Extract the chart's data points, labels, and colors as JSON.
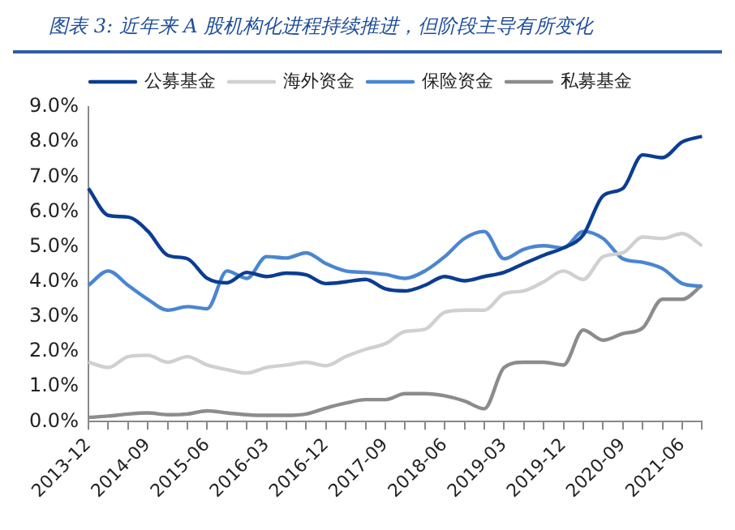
{
  "chart_data": {
    "type": "line",
    "title": "图表 3: 近年来 A 股机构化进程持续推进，但阶段主导有所变化",
    "categories": [
      "2013-12",
      null,
      null,
      "2014-09",
      null,
      null,
      "2015-06",
      null,
      null,
      "2016-03",
      null,
      null,
      "2016-12",
      null,
      null,
      "2017-09",
      null,
      null,
      "2018-06",
      null,
      null,
      "2019-03",
      null,
      null,
      "2019-12",
      null,
      null,
      "2020-09",
      null,
      null,
      "2021-06",
      null
    ],
    "series": [
      {
        "name": "公募基金",
        "color": "#0b3d91",
        "values": [
          6.67,
          5.9,
          5.85,
          5.45,
          4.76,
          4.66,
          4.1,
          3.97,
          4.27,
          4.15,
          4.25,
          4.2,
          3.95,
          4.0,
          4.07,
          3.8,
          3.74,
          3.9,
          4.15,
          4.03,
          4.15,
          4.27,
          4.52,
          4.76,
          4.97,
          5.34,
          6.46,
          6.67,
          7.63,
          7.55,
          8.0,
          8.16
        ]
      },
      {
        "name": "海外资金",
        "color": "#d0d0d0",
        "values": [
          1.7,
          1.55,
          1.86,
          1.9,
          1.7,
          1.86,
          1.62,
          1.49,
          1.39,
          1.55,
          1.62,
          1.7,
          1.6,
          1.86,
          2.07,
          2.23,
          2.58,
          2.64,
          3.13,
          3.19,
          3.19,
          3.66,
          3.74,
          4.0,
          4.31,
          4.07,
          4.72,
          4.83,
          5.28,
          5.24,
          5.38,
          5.03
        ]
      },
      {
        "name": "保险资金",
        "color": "#4a86d0",
        "values": [
          3.9,
          4.31,
          3.9,
          3.5,
          3.19,
          3.29,
          3.23,
          4.31,
          4.1,
          4.72,
          4.68,
          4.83,
          4.52,
          4.31,
          4.27,
          4.21,
          4.1,
          4.31,
          4.72,
          5.24,
          5.44,
          4.66,
          4.93,
          5.03,
          4.97,
          5.44,
          5.24,
          4.66,
          4.56,
          4.38,
          3.95,
          3.87
        ]
      },
      {
        "name": "私募基金",
        "color": "#8c8c8c",
        "values": [
          0.12,
          0.16,
          0.22,
          0.25,
          0.2,
          0.22,
          0.31,
          0.25,
          0.2,
          0.18,
          0.18,
          0.22,
          0.39,
          0.53,
          0.63,
          0.63,
          0.8,
          0.8,
          0.74,
          0.59,
          0.37,
          1.55,
          1.7,
          1.7,
          1.62,
          2.62,
          2.33,
          2.52,
          2.68,
          3.5,
          3.5,
          3.9
        ]
      }
    ],
    "ylim": [
      0,
      9
    ],
    "yticks": [
      {
        "value": 0,
        "label": "0.0%"
      },
      {
        "value": 1,
        "label": "1.0%"
      },
      {
        "value": 2,
        "label": "2.0%"
      },
      {
        "value": 3,
        "label": "3.0%"
      },
      {
        "value": 4,
        "label": "4.0%"
      },
      {
        "value": 5,
        "label": "5.0%"
      },
      {
        "value": 6,
        "label": "6.0%"
      },
      {
        "value": 7,
        "label": "7.0%"
      },
      {
        "value": 8,
        "label": "8.0%"
      },
      {
        "value": 9,
        "label": "9.0%"
      }
    ],
    "grid": false,
    "legend": "top",
    "marker": "none",
    "line_style": "solid"
  }
}
